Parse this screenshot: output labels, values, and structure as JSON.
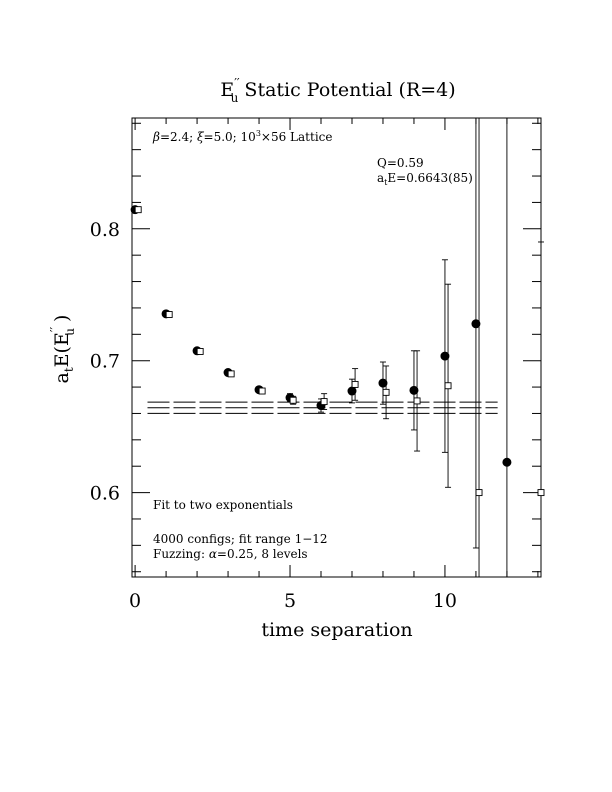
{
  "chart_data": {
    "type": "scatter",
    "title_main": "E",
    "title_sup": "′′",
    "title_sub": "u",
    "title_rest": "  Static Potential (R=4)",
    "xlabel": "time separation",
    "ylabel_main": "a",
    "ylabel_sub1": "t",
    "ylabel_mid": "E(E",
    "ylabel_sup": "′′",
    "ylabel_sub2": "u",
    "ylabel_end": " )",
    "xlim": [
      -0.1,
      13.1
    ],
    "ylim": [
      0.536,
      0.884
    ],
    "x_ticks": [
      0,
      5,
      10
    ],
    "x_tick_labels": [
      "0",
      "5",
      "10"
    ],
    "y_ticks": [
      0.6,
      0.7,
      0.8
    ],
    "y_tick_labels": [
      "0.6",
      "0.7",
      "0.8"
    ],
    "annotations": {
      "lattice_beta": "β",
      "lattice_rest": "=2.4; ",
      "lattice_xi": "ξ",
      "lattice_rest2": "=5.0; 10",
      "lattice_exp": "3",
      "lattice_rest3": "×56 Lattice",
      "q_value": "Q=0.59",
      "fit_a": "a",
      "fit_sub": "t",
      "fit_rest": "E=0.6643(85)",
      "fit_desc": "Fit to two exponentials",
      "configs": "4000 configs; fit range 1−12",
      "fuzz_pre": "Fuzzing: ",
      "fuzz_alpha": "α",
      "fuzz_post": "=0.25, 8 levels"
    },
    "fit": {
      "value": 0.6643,
      "error": 0.0085,
      "x_range": [
        0.4,
        11.7
      ]
    },
    "series": [
      {
        "marker": "filled-circle",
        "points": [
          {
            "x": 0,
            "y": 0.8145,
            "err": 0.002
          },
          {
            "x": 1,
            "y": 0.7355,
            "err": 0.0015
          },
          {
            "x": 2,
            "y": 0.7075,
            "err": 0.0015
          },
          {
            "x": 3,
            "y": 0.691,
            "err": 0.0015
          },
          {
            "x": 4,
            "y": 0.678,
            "err": 0.0018
          },
          {
            "x": 5,
            "y": 0.672,
            "err": 0.003
          },
          {
            "x": 6,
            "y": 0.666,
            "err": 0.005
          },
          {
            "x": 7,
            "y": 0.677,
            "err": 0.009
          },
          {
            "x": 8,
            "y": 0.683,
            "err": 0.016
          },
          {
            "x": 9,
            "y": 0.6775,
            "err": 0.03
          },
          {
            "x": 10,
            "y": 0.7035,
            "err": 0.073
          },
          {
            "x": 11,
            "y": 0.728,
            "err": 0.17
          },
          {
            "x": 12,
            "y": 0.623,
            "err": 0.4
          }
        ]
      },
      {
        "marker": "open-square",
        "points": [
          {
            "x": 0.1,
            "y": 0.8145,
            "err": 0.002
          },
          {
            "x": 1.1,
            "y": 0.735,
            "err": 0.0015
          },
          {
            "x": 2.1,
            "y": 0.707,
            "err": 0.0015
          },
          {
            "x": 3.1,
            "y": 0.69,
            "err": 0.0015
          },
          {
            "x": 4.1,
            "y": 0.677,
            "err": 0.0018
          },
          {
            "x": 5.1,
            "y": 0.67,
            "err": 0.003
          },
          {
            "x": 6.1,
            "y": 0.669,
            "err": 0.006
          },
          {
            "x": 7.1,
            "y": 0.682,
            "err": 0.012
          },
          {
            "x": 8.1,
            "y": 0.676,
            "err": 0.02
          },
          {
            "x": 9.1,
            "y": 0.6695,
            "err": 0.038
          },
          {
            "x": 10.1,
            "y": 0.681,
            "err": 0.077
          },
          {
            "x": 11.1,
            "y": 0.6,
            "err": 0.4
          },
          {
            "x": 13.1,
            "y": 0.6,
            "err": 0.19
          }
        ]
      }
    ]
  }
}
